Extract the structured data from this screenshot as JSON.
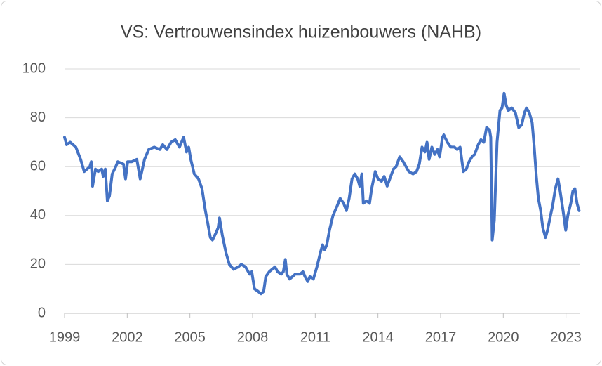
{
  "chart_data": {
    "type": "line",
    "title": "VS: Vertrouwensindex huizenbouwers (NAHB)",
    "x": [
      1999,
      1999.1,
      1999.27,
      1999.54,
      1999.77,
      1999.94,
      2000.21,
      2000.28,
      2000.34,
      2000.48,
      2000.61,
      2000.78,
      2000.85,
      2000.95,
      2001.05,
      2001.15,
      2001.28,
      2001.45,
      2001.55,
      2001.82,
      2001.92,
      2002.02,
      2002.22,
      2002.46,
      2002.62,
      2002.83,
      2003.03,
      2003.3,
      2003.56,
      2003.7,
      2003.9,
      2004.1,
      2004.3,
      2004.5,
      2004.7,
      2004.84,
      2004.94,
      2005.04,
      2005.21,
      2005.41,
      2005.58,
      2005.74,
      2005.85,
      2005.98,
      2006.08,
      2006.25,
      2006.35,
      2006.42,
      2006.55,
      2006.72,
      2006.89,
      2007.09,
      2007.32,
      2007.46,
      2007.66,
      2007.86,
      2007.96,
      2008.09,
      2008.26,
      2008.4,
      2008.53,
      2008.63,
      2008.8,
      2008.93,
      2009.07,
      2009.2,
      2009.37,
      2009.47,
      2009.57,
      2009.64,
      2009.77,
      2009.91,
      2010.04,
      2010.28,
      2010.41,
      2010.51,
      2010.64,
      2010.74,
      2010.91,
      2011.08,
      2011.25,
      2011.35,
      2011.45,
      2011.55,
      2011.68,
      2011.85,
      2012.05,
      2012.19,
      2012.36,
      2012.49,
      2012.62,
      2012.76,
      2012.89,
      2013.03,
      2013.13,
      2013.23,
      2013.3,
      2013.46,
      2013.6,
      2013.7,
      2013.87,
      2014,
      2014.17,
      2014.3,
      2014.44,
      2014.57,
      2014.74,
      2014.87,
      2015.04,
      2015.21,
      2015.34,
      2015.48,
      2015.68,
      2015.85,
      2015.98,
      2016.11,
      2016.25,
      2016.35,
      2016.45,
      2016.58,
      2016.72,
      2016.85,
      2016.95,
      2017.09,
      2017.15,
      2017.32,
      2017.49,
      2017.66,
      2017.79,
      2017.93,
      2018.09,
      2018.23,
      2018.36,
      2018.5,
      2018.63,
      2018.8,
      2018.93,
      2019.07,
      2019.2,
      2019.34,
      2019.4,
      2019.47,
      2019.57,
      2019.7,
      2019.84,
      2019.94,
      2020.04,
      2020.14,
      2020.24,
      2020.41,
      2020.58,
      2020.74,
      2020.88,
      2021.01,
      2021.11,
      2021.25,
      2021.38,
      2021.48,
      2021.58,
      2021.68,
      2021.79,
      2021.89,
      2022.02,
      2022.12,
      2022.26,
      2022.36,
      2022.49,
      2022.62,
      2022.72,
      2022.86,
      2022.99,
      2023.09,
      2023.23,
      2023.33,
      2023.43,
      2023.53,
      2023.63
    ],
    "series": [
      {
        "name": "NAHB",
        "color": "#4472c4",
        "values": [
          72,
          69,
          70,
          68,
          63,
          58,
          60,
          62,
          52,
          59,
          58,
          59,
          56,
          59,
          46,
          48,
          57,
          60,
          62,
          61,
          55,
          62,
          62,
          63,
          55,
          63,
          67,
          68,
          67,
          69,
          67,
          70,
          71,
          68,
          72,
          66,
          68,
          63,
          57,
          55,
          51,
          42,
          37,
          31,
          30,
          33,
          35,
          39,
          32,
          25,
          20,
          18,
          19,
          20,
          19,
          16,
          17,
          10,
          9,
          8,
          9,
          15,
          17,
          18,
          19,
          17,
          16,
          17,
          22,
          16,
          14,
          15,
          16,
          16,
          17,
          15,
          13,
          15,
          14,
          19,
          25,
          28,
          26,
          28,
          34,
          40,
          44,
          47,
          45,
          42,
          47,
          55,
          57,
          55,
          52,
          57,
          45,
          46,
          45,
          51,
          58,
          55,
          54,
          56,
          52,
          55,
          59,
          60,
          64,
          62,
          60,
          58,
          57,
          58,
          61,
          68,
          66,
          70,
          63,
          68,
          65,
          67,
          64,
          72,
          73,
          70,
          68,
          68,
          67,
          68,
          58,
          59,
          62,
          64,
          65,
          69,
          71,
          70,
          76,
          75,
          72,
          30,
          38,
          70,
          83,
          84,
          90,
          85,
          83,
          84,
          82,
          76,
          77,
          82,
          84,
          82,
          78,
          68,
          56,
          47,
          42,
          35,
          31,
          34,
          40,
          44,
          51,
          55,
          50,
          42,
          34,
          40,
          45,
          50,
          51,
          45,
          42
        ]
      }
    ],
    "xlim": [
      1999,
      2023.65
    ],
    "xticks": [
      1999,
      2002,
      2005,
      2008,
      2011,
      2014,
      2017,
      2020,
      2023
    ],
    "ylim": [
      0,
      100
    ],
    "yticks": [
      0,
      20,
      40,
      60,
      80,
      100
    ],
    "grid": true
  }
}
